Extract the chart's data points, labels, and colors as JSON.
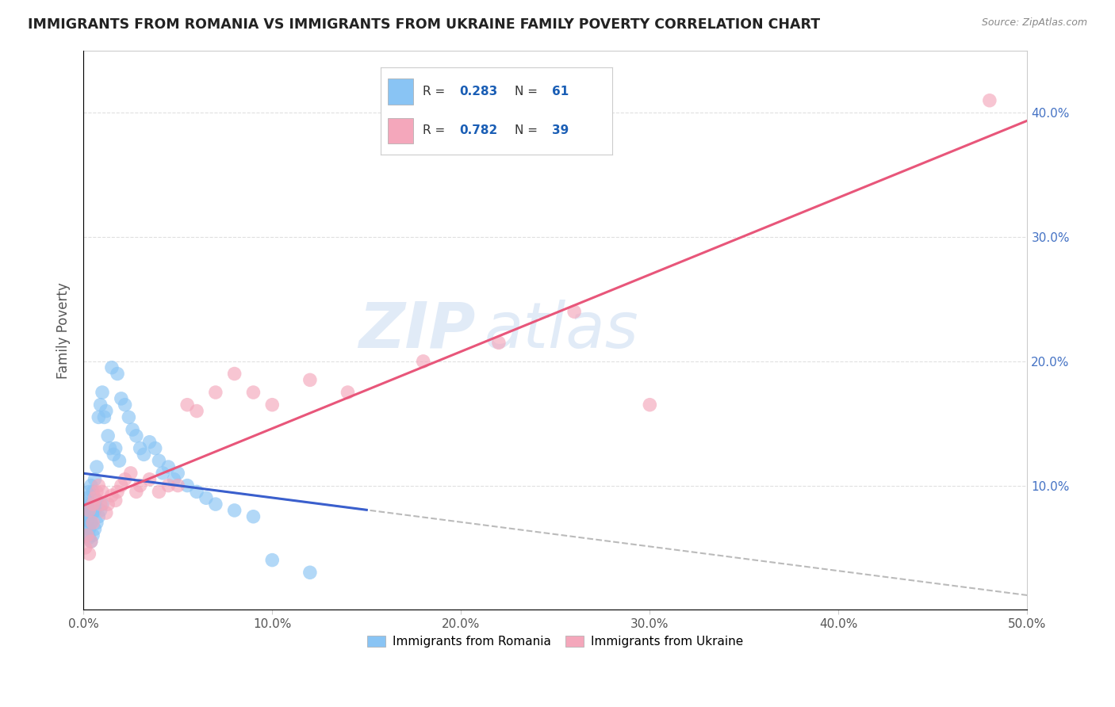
{
  "title": "IMMIGRANTS FROM ROMANIA VS IMMIGRANTS FROM UKRAINE FAMILY POVERTY CORRELATION CHART",
  "source": "Source: ZipAtlas.com",
  "ylabel": "Family Poverty",
  "xlim": [
    0,
    0.5
  ],
  "ylim": [
    0,
    0.45
  ],
  "xticks": [
    0.0,
    0.1,
    0.2,
    0.3,
    0.4,
    0.5
  ],
  "yticks": [
    0.0,
    0.1,
    0.2,
    0.3,
    0.4
  ],
  "romania_R": 0.283,
  "romania_N": 61,
  "ukraine_R": 0.782,
  "ukraine_N": 39,
  "romania_color": "#89c4f4",
  "ukraine_color": "#f4a7bb",
  "romania_line_color": "#3a5fcd",
  "ukraine_line_color": "#e8567a",
  "watermark_zip": "ZIP",
  "watermark_atlas": "atlas",
  "legend_label_romania": "Immigrants from Romania",
  "legend_label_ukraine": "Immigrants from Ukraine",
  "romania_x": [
    0.001,
    0.001,
    0.001,
    0.002,
    0.002,
    0.002,
    0.002,
    0.003,
    0.003,
    0.003,
    0.003,
    0.004,
    0.004,
    0.004,
    0.004,
    0.005,
    0.005,
    0.005,
    0.006,
    0.006,
    0.006,
    0.007,
    0.007,
    0.007,
    0.008,
    0.008,
    0.009,
    0.009,
    0.01,
    0.01,
    0.011,
    0.012,
    0.013,
    0.014,
    0.015,
    0.016,
    0.017,
    0.018,
    0.019,
    0.02,
    0.022,
    0.024,
    0.026,
    0.028,
    0.03,
    0.032,
    0.035,
    0.038,
    0.04,
    0.042,
    0.045,
    0.048,
    0.05,
    0.055,
    0.06,
    0.065,
    0.07,
    0.08,
    0.09,
    0.1,
    0.12
  ],
  "romania_y": [
    0.068,
    0.075,
    0.085,
    0.06,
    0.072,
    0.082,
    0.09,
    0.058,
    0.065,
    0.078,
    0.095,
    0.055,
    0.07,
    0.085,
    0.1,
    0.06,
    0.078,
    0.095,
    0.065,
    0.08,
    0.105,
    0.07,
    0.088,
    0.115,
    0.075,
    0.155,
    0.08,
    0.165,
    0.085,
    0.175,
    0.155,
    0.16,
    0.14,
    0.13,
    0.195,
    0.125,
    0.13,
    0.19,
    0.12,
    0.17,
    0.165,
    0.155,
    0.145,
    0.14,
    0.13,
    0.125,
    0.135,
    0.13,
    0.12,
    0.11,
    0.115,
    0.105,
    0.11,
    0.1,
    0.095,
    0.09,
    0.085,
    0.08,
    0.075,
    0.04,
    0.03
  ],
  "ukraine_x": [
    0.001,
    0.002,
    0.003,
    0.003,
    0.004,
    0.005,
    0.005,
    0.006,
    0.007,
    0.008,
    0.009,
    0.01,
    0.012,
    0.013,
    0.015,
    0.017,
    0.018,
    0.02,
    0.022,
    0.025,
    0.028,
    0.03,
    0.035,
    0.04,
    0.045,
    0.05,
    0.055,
    0.06,
    0.07,
    0.08,
    0.09,
    0.1,
    0.12,
    0.14,
    0.18,
    0.22,
    0.26,
    0.3,
    0.48
  ],
  "ukraine_y": [
    0.05,
    0.06,
    0.045,
    0.08,
    0.055,
    0.07,
    0.085,
    0.09,
    0.095,
    0.1,
    0.085,
    0.095,
    0.078,
    0.085,
    0.092,
    0.088,
    0.095,
    0.1,
    0.105,
    0.11,
    0.095,
    0.1,
    0.105,
    0.095,
    0.1,
    0.1,
    0.165,
    0.16,
    0.175,
    0.19,
    0.175,
    0.165,
    0.185,
    0.175,
    0.2,
    0.215,
    0.24,
    0.165,
    0.41
  ],
  "background_color": "#ffffff",
  "grid_color": "#dddddd",
  "title_color": "#222222",
  "axis_color": "#555555",
  "right_tick_color": "#4472c4",
  "legend_text_color": "#333333",
  "legend_value_color": "#1a5eb5"
}
